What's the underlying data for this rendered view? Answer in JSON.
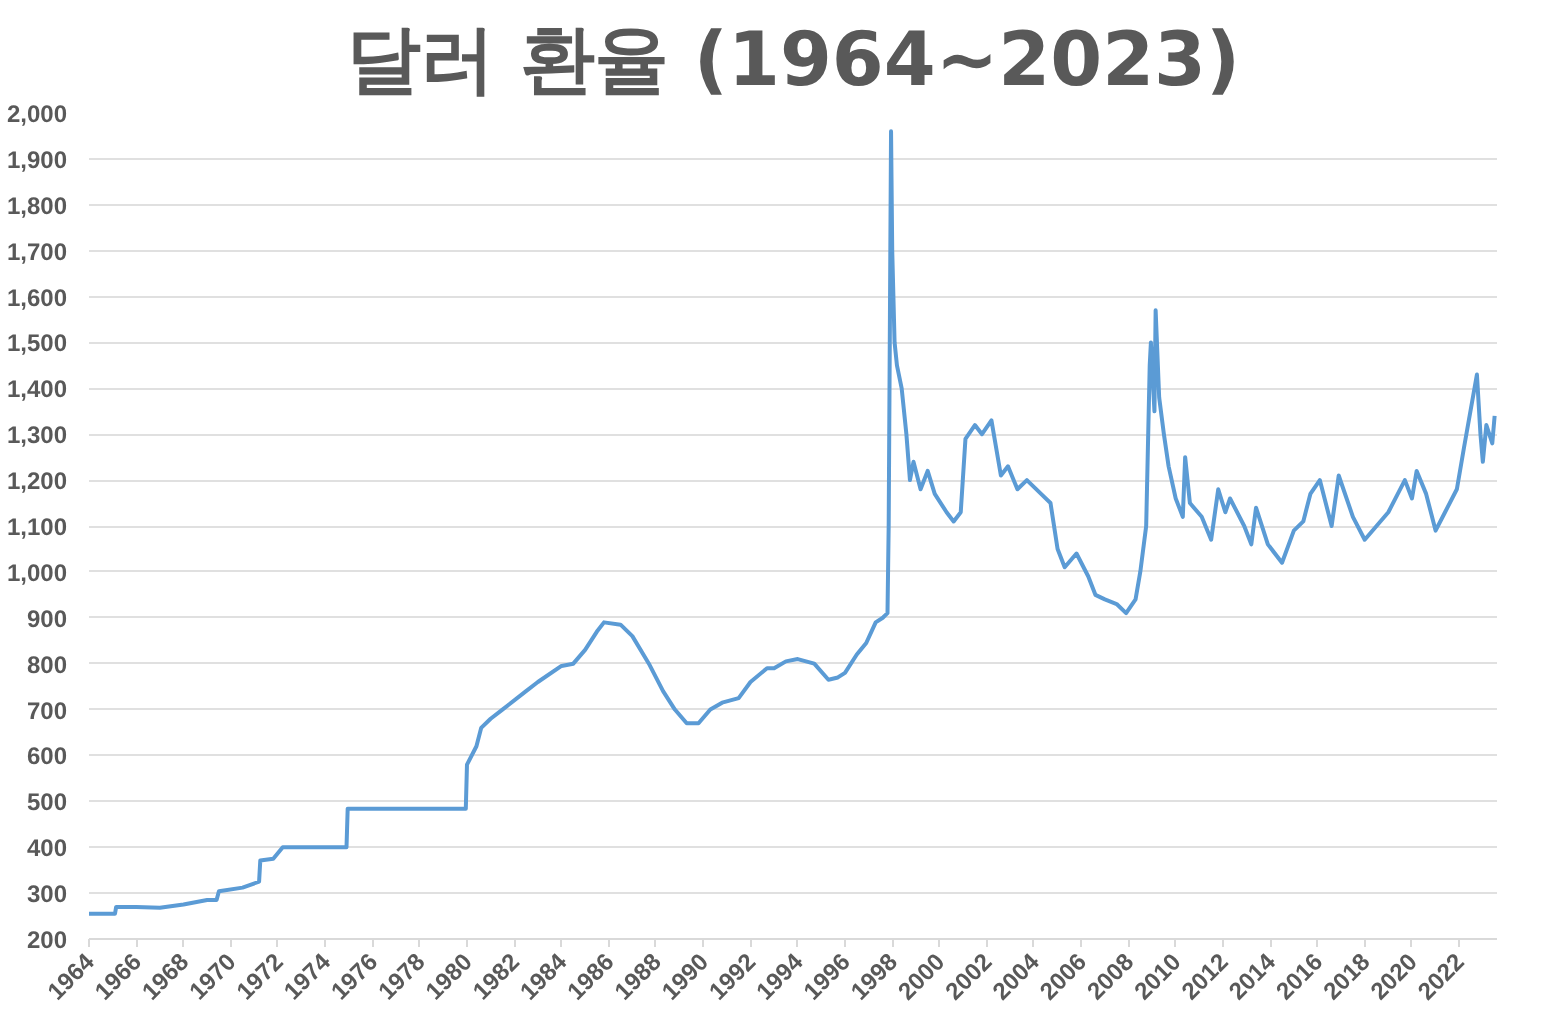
{
  "chart_data": {
    "type": "line",
    "title": "달러 환율 (1964~2023)",
    "xlim": [
      1964,
      2023.6
    ],
    "xticks": [
      1964,
      1966,
      1968,
      1970,
      1972,
      1974,
      1976,
      1978,
      1980,
      1982,
      1984,
      1986,
      1988,
      1990,
      1992,
      1994,
      1996,
      1998,
      2000,
      2002,
      2004,
      2006,
      2008,
      2010,
      2012,
      2014,
      2016,
      2018,
      2020,
      2022
    ],
    "ylim": [
      200,
      2000
    ],
    "yticks": [
      {
        "value": 200,
        "label": "200"
      },
      {
        "value": 300,
        "label": "300"
      },
      {
        "value": 400,
        "label": "400"
      },
      {
        "value": 500,
        "label": "500"
      },
      {
        "value": 600,
        "label": "600"
      },
      {
        "value": 700,
        "label": "700"
      },
      {
        "value": 800,
        "label": "800"
      },
      {
        "value": 900,
        "label": "900"
      },
      {
        "value": 1000,
        "label": "1,000"
      },
      {
        "value": 1100,
        "label": "1,100"
      },
      {
        "value": 1200,
        "label": "1,200"
      },
      {
        "value": 1300,
        "label": "1,300"
      },
      {
        "value": 1400,
        "label": "1,400"
      },
      {
        "value": 1500,
        "label": "1,500"
      },
      {
        "value": 1600,
        "label": "1,600"
      },
      {
        "value": 1700,
        "label": "1,700"
      },
      {
        "value": 1800,
        "label": "1,800"
      },
      {
        "value": 1900,
        "label": "1,900"
      },
      {
        "value": 2000,
        "label": "2,000"
      }
    ],
    "grid": "y",
    "marker": "none",
    "line_style": "solid",
    "x": [
      1964,
      1965.1,
      1965.15,
      1966,
      1967,
      1968,
      1969,
      1969.4,
      1969.5,
      1970.5,
      1971.2,
      1971.25,
      1971.8,
      1972.2,
      1974.9,
      1974.95,
      1979.95,
      1980.0,
      1980.4,
      1980.6,
      1981,
      1981.5,
      1982.5,
      1983,
      1984,
      1984.5,
      1985,
      1985.5,
      1985.8,
      1986.5,
      1987,
      1987.7,
      1988.3,
      1988.8,
      1989.3,
      1989.8,
      1990.3,
      1990.8,
      1991.5,
      1992,
      1992.7,
      1993,
      1993.5,
      1994,
      1994.7,
      1995.3,
      1995.7,
      1996,
      1996.5,
      1996.9,
      1997.3,
      1997.6,
      1997.8,
      1997.85,
      1997.95,
      1998.0,
      1998.1,
      1998.2,
      1998.4,
      1998.6,
      1998.75,
      1998.9,
      1999.2,
      1999.5,
      1999.8,
      2000.3,
      2000.6,
      2000.9,
      2001.1,
      2001.5,
      2001.8,
      2002.2,
      2002.6,
      2002.9,
      2003.3,
      2003.7,
      2004.3,
      2004.7,
      2005,
      2005.3,
      2005.8,
      2006.3,
      2006.6,
      2007,
      2007.5,
      2007.9,
      2008.3,
      2008.5,
      2008.75,
      2008.9,
      2008.95,
      2009.1,
      2009.15,
      2009.3,
      2009.5,
      2009.7,
      2010,
      2010.3,
      2010.4,
      2010.6,
      2011.1,
      2011.5,
      2011.8,
      2012.1,
      2012.3,
      2012.9,
      2013.2,
      2013.4,
      2013.9,
      2014.5,
      2015.0,
      2015.4,
      2015.7,
      2016.1,
      2016.6,
      2016.9,
      2017.5,
      2018.0,
      2018.5,
      2019,
      2019.7,
      2020,
      2020.2,
      2020.6,
      2021.0,
      2021.4,
      2021.9,
      2022.2,
      2022.75,
      2022.9,
      2023.0,
      2023.15,
      2023.4,
      2023.5
    ],
    "series": [
      {
        "color": "#5b9bd5",
        "values": [
          255,
          255,
          270,
          270,
          268,
          275,
          285,
          285,
          304,
          312,
          325,
          371,
          375,
          400,
          400,
          484,
          484,
          580,
          620,
          660,
          680,
          700,
          740,
          760,
          795,
          800,
          830,
          870,
          890,
          885,
          860,
          800,
          740,
          700,
          670,
          670,
          700,
          715,
          725,
          760,
          790,
          790,
          805,
          810,
          800,
          765,
          770,
          780,
          820,
          845,
          890,
          900,
          910,
          1100,
          1960,
          1700,
          1500,
          1450,
          1400,
          1300,
          1200,
          1240,
          1180,
          1220,
          1170,
          1130,
          1110,
          1130,
          1290,
          1320,
          1300,
          1330,
          1210,
          1230,
          1180,
          1200,
          1170,
          1150,
          1050,
          1010,
          1040,
          990,
          950,
          940,
          930,
          910,
          940,
          1000,
          1100,
          1450,
          1500,
          1350,
          1570,
          1380,
          1300,
          1230,
          1160,
          1120,
          1250,
          1150,
          1120,
          1070,
          1180,
          1130,
          1160,
          1100,
          1060,
          1140,
          1060,
          1020,
          1090,
          1110,
          1170,
          1200,
          1100,
          1210,
          1120,
          1070,
          1100,
          1130,
          1200,
          1160,
          1220,
          1170,
          1090,
          1130,
          1180,
          1270,
          1430,
          1300,
          1240,
          1320,
          1280,
          1340
        ]
      }
    ]
  }
}
